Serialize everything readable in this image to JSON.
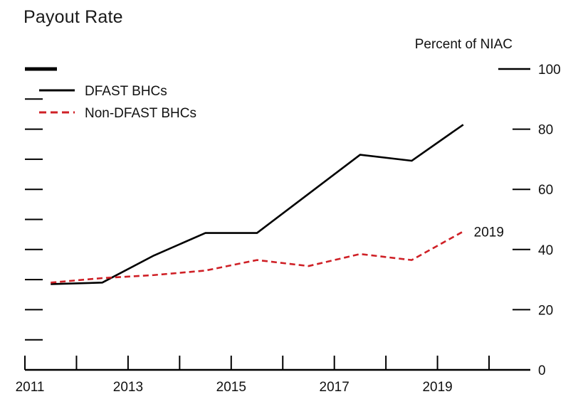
{
  "title": "Payout Rate",
  "unit_label": "Percent of NIAC",
  "colors": {
    "axis": "#000000",
    "dfast": "#000000",
    "non_dfast": "#cf2026",
    "text": "#111111"
  },
  "chart_data": {
    "type": "line",
    "title": "Payout Rate",
    "ylabel": "Percent of NIAC",
    "xlim": [
      2011,
      2020.8
    ],
    "ylim": [
      0,
      100
    ],
    "grid": false,
    "legend_position": "top-left",
    "x": [
      2011.5,
      2012.5,
      2013.5,
      2014.5,
      2015.5,
      2016.5,
      2017.5,
      2018.5,
      2019.5
    ],
    "series": [
      {
        "name": "DFAST BHCs",
        "style": "solid",
        "color": "#000000",
        "values": [
          28.5,
          29,
          38,
          45.5,
          45.5,
          58.5,
          71.5,
          69.5,
          81.5
        ]
      },
      {
        "name": "Non-DFAST BHCs",
        "style": "dashed",
        "color": "#cf2026",
        "values": [
          29,
          30.5,
          31.5,
          33,
          36.5,
          34.5,
          38.5,
          36.5,
          46
        ]
      }
    ],
    "y_tick_labels": [
      "0",
      "20",
      "40",
      "60",
      "80",
      "100"
    ],
    "y_tick_values": [
      0,
      20,
      40,
      60,
      80,
      100
    ],
    "y_minor_tick_values": [
      10,
      20,
      30,
      40,
      50,
      60,
      70,
      80,
      90
    ],
    "x_tick_years": [
      2011,
      2012,
      2013,
      2014,
      2015,
      2016,
      2017,
      2018,
      2019,
      2020
    ],
    "x_tick_labels": [
      "2011",
      "2013",
      "2015",
      "2017",
      "2019"
    ],
    "x_tick_label_years": [
      2011,
      2013,
      2015,
      2017,
      2019
    ],
    "annotation": {
      "text": "2019",
      "x": 2019.65,
      "y": 46
    }
  }
}
